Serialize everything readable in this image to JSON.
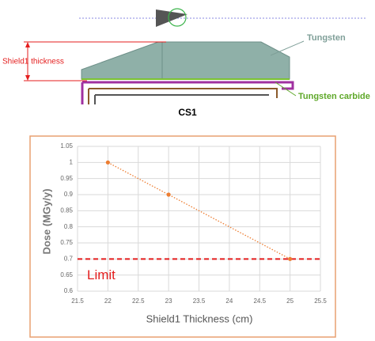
{
  "diagram": {
    "thickness_label": "Shield1 thickness",
    "tungsten_label": "Tungsten",
    "carbide_label": "Tungsten carbide",
    "caption": "CS1"
  },
  "chart_data": {
    "type": "line",
    "x": [
      22,
      23,
      25
    ],
    "values": [
      1,
      0.9,
      0.7
    ],
    "color": "#ed7d31",
    "xlabel": "Shield1 Thickness (cm)",
    "ylabel": "Dose (MGy/y)",
    "xlim": [
      21.5,
      25.5
    ],
    "xticks": [
      21.5,
      22,
      22.5,
      23,
      23.5,
      24,
      24.5,
      25,
      25.5
    ],
    "ylim": [
      0.6,
      1.05
    ],
    "yticks": [
      0.6,
      0.65,
      0.7,
      0.75,
      0.8,
      0.85,
      0.9,
      0.95,
      1,
      1.05
    ],
    "grid": true,
    "reference_line": {
      "value": 0.7,
      "label": "Limit",
      "color": "#e41e1e"
    }
  }
}
